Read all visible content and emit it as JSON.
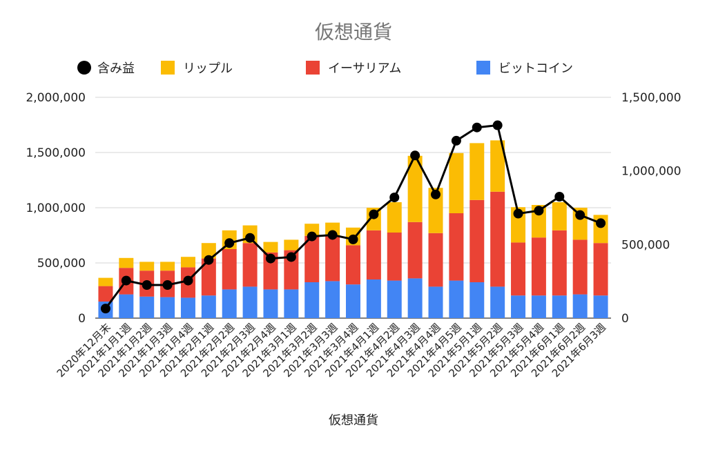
{
  "chart_data": {
    "type": "bar",
    "stacked": true,
    "title": "仮想通貨",
    "xlabel": "仮想通貨",
    "ylabel": "",
    "ylim": [
      0,
      2000000
    ],
    "y2lim": [
      0,
      1500000
    ],
    "y_ticks": [
      "0",
      "500,000",
      "1,000,000",
      "1,500,000",
      "2,000,000"
    ],
    "y2_ticks": [
      "0",
      "500,000",
      "1,000,000",
      "1,500,000"
    ],
    "legend_position": "top",
    "grid": true,
    "categories": [
      "2020年12月末",
      "2021年1月1週",
      "2021年1月2週",
      "2021年1月3週",
      "2021年1月4週",
      "2021年2月1週",
      "2021年2月2週",
      "2021年2月3週",
      "2021年2月4週",
      "2021年3月1週",
      "2021年3月2週",
      "2021年3月3週",
      "2021年3月4週",
      "2021年4月1週",
      "2021年4月2週",
      "2021年4月3週",
      "2021年4月4週",
      "2021年4月5週",
      "2021年5月1週",
      "2021年5月2週",
      "2021年5月3週",
      "2021年5月4週",
      "2021年6月1週",
      "2021年6月2週",
      "2021年6月3週"
    ],
    "series": [
      {
        "name": "ビットコイン",
        "axis": "left",
        "color": "#4285F4",
        "values": [
          150000,
          215000,
          195000,
          190000,
          185000,
          205000,
          260000,
          285000,
          260000,
          260000,
          325000,
          335000,
          305000,
          350000,
          340000,
          360000,
          285000,
          340000,
          325000,
          285000,
          205000,
          205000,
          205000,
          215000,
          205000
        ]
      },
      {
        "name": "イーサリアム",
        "axis": "left",
        "color": "#EA4335",
        "values": [
          140000,
          240000,
          235000,
          240000,
          275000,
          335000,
          365000,
          395000,
          335000,
          355000,
          420000,
          415000,
          355000,
          445000,
          435000,
          510000,
          485000,
          610000,
          745000,
          860000,
          480000,
          525000,
          590000,
          495000,
          475000
        ]
      },
      {
        "name": "リップル",
        "axis": "left",
        "color": "#FBBC04",
        "values": [
          75000,
          90000,
          80000,
          80000,
          95000,
          140000,
          170000,
          160000,
          95000,
          95000,
          110000,
          115000,
          160000,
          205000,
          275000,
          600000,
          410000,
          545000,
          515000,
          465000,
          320000,
          295000,
          255000,
          290000,
          255000
        ]
      },
      {
        "name": "含み益",
        "axis": "right",
        "type": "line",
        "color": "#000000",
        "values": [
          65000,
          255000,
          225000,
          225000,
          255000,
          395000,
          510000,
          545000,
          405000,
          415000,
          555000,
          565000,
          535000,
          705000,
          820000,
          1105000,
          840000,
          1205000,
          1295000,
          1310000,
          710000,
          730000,
          825000,
          700000,
          645000
        ]
      }
    ]
  }
}
